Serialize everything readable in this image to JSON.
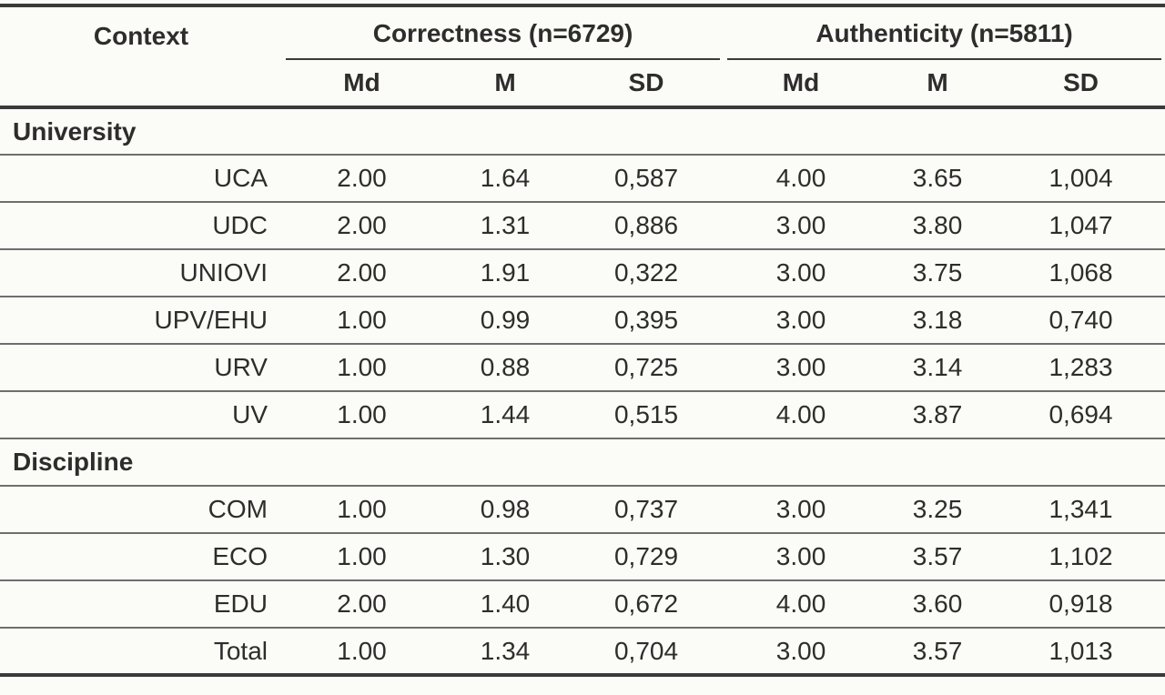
{
  "table": {
    "context_header": "Context",
    "groups": [
      {
        "label": "Correctness (n=6729)",
        "sub": [
          "Md",
          "M",
          "SD"
        ]
      },
      {
        "label": "Authenticity (n=5811)",
        "sub": [
          "Md",
          "M",
          "SD"
        ]
      }
    ],
    "sections": [
      {
        "label": "University",
        "rows": [
          {
            "label": "UCA",
            "values": [
              "2.00",
              "1.64",
              "0,587",
              "4.00",
              "3.65",
              "1,004"
            ]
          },
          {
            "label": "UDC",
            "values": [
              "2.00",
              "1.31",
              "0,886",
              "3.00",
              "3.80",
              "1,047"
            ]
          },
          {
            "label": "UNIOVI",
            "values": [
              "2.00",
              "1.91",
              "0,322",
              "3.00",
              "3.75",
              "1,068"
            ]
          },
          {
            "label": "UPV/EHU",
            "values": [
              "1.00",
              "0.99",
              "0,395",
              "3.00",
              "3.18",
              "0,740"
            ]
          },
          {
            "label": "URV",
            "values": [
              "1.00",
              "0.88",
              "0,725",
              "3.00",
              "3.14",
              "1,283"
            ]
          },
          {
            "label": "UV",
            "values": [
              "1.00",
              "1.44",
              "0,515",
              "4.00",
              "3.87",
              "0,694"
            ]
          }
        ]
      },
      {
        "label": "Discipline",
        "rows": [
          {
            "label": "COM",
            "values": [
              "1.00",
              "0.98",
              "0,737",
              "3.00",
              "3.25",
              "1,341"
            ]
          },
          {
            "label": "ECO",
            "values": [
              "1.00",
              "1.30",
              "0,729",
              "3.00",
              "3.57",
              "1,102"
            ]
          },
          {
            "label": "EDU",
            "values": [
              "2.00",
              "1.40",
              "0,672",
              "4.00",
              "3.60",
              "0,918"
            ]
          },
          {
            "label": "Total",
            "values": [
              "1.00",
              "1.34",
              "0,704",
              "3.00",
              "3.57",
              "1,013"
            ]
          }
        ]
      }
    ]
  }
}
